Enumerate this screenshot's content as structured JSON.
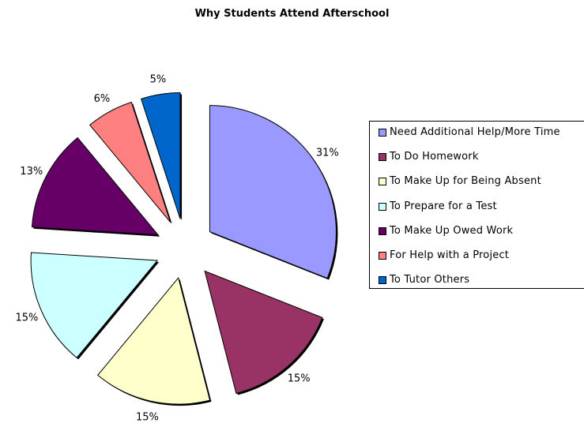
{
  "chart_data": {
    "type": "pie",
    "title": "Why Students Attend Afterschool",
    "slices": [
      {
        "label": "Need Additional Help/More Time",
        "value": 31,
        "value_label": "31%",
        "color": "#9999FF"
      },
      {
        "label": "To Do Homework",
        "value": 15,
        "value_label": "15%",
        "color": "#993366"
      },
      {
        "label": "To Make Up for Being Absent",
        "value": 15,
        "value_label": "15%",
        "color": "#FFFFCC"
      },
      {
        "label": "To Prepare for a Test",
        "value": 15,
        "value_label": "15%",
        "color": "#CCFFFF"
      },
      {
        "label": "To Make Up Owed Work",
        "value": 13,
        "value_label": "13%",
        "color": "#660066"
      },
      {
        "label": "For Help with a Project",
        "value": 6,
        "value_label": "6%",
        "color": "#FF8080"
      },
      {
        "label": "To Tutor Others",
        "value": 5,
        "value_label": "5%",
        "color": "#0066CC"
      }
    ],
    "exploded": true,
    "legend_position": "right"
  }
}
